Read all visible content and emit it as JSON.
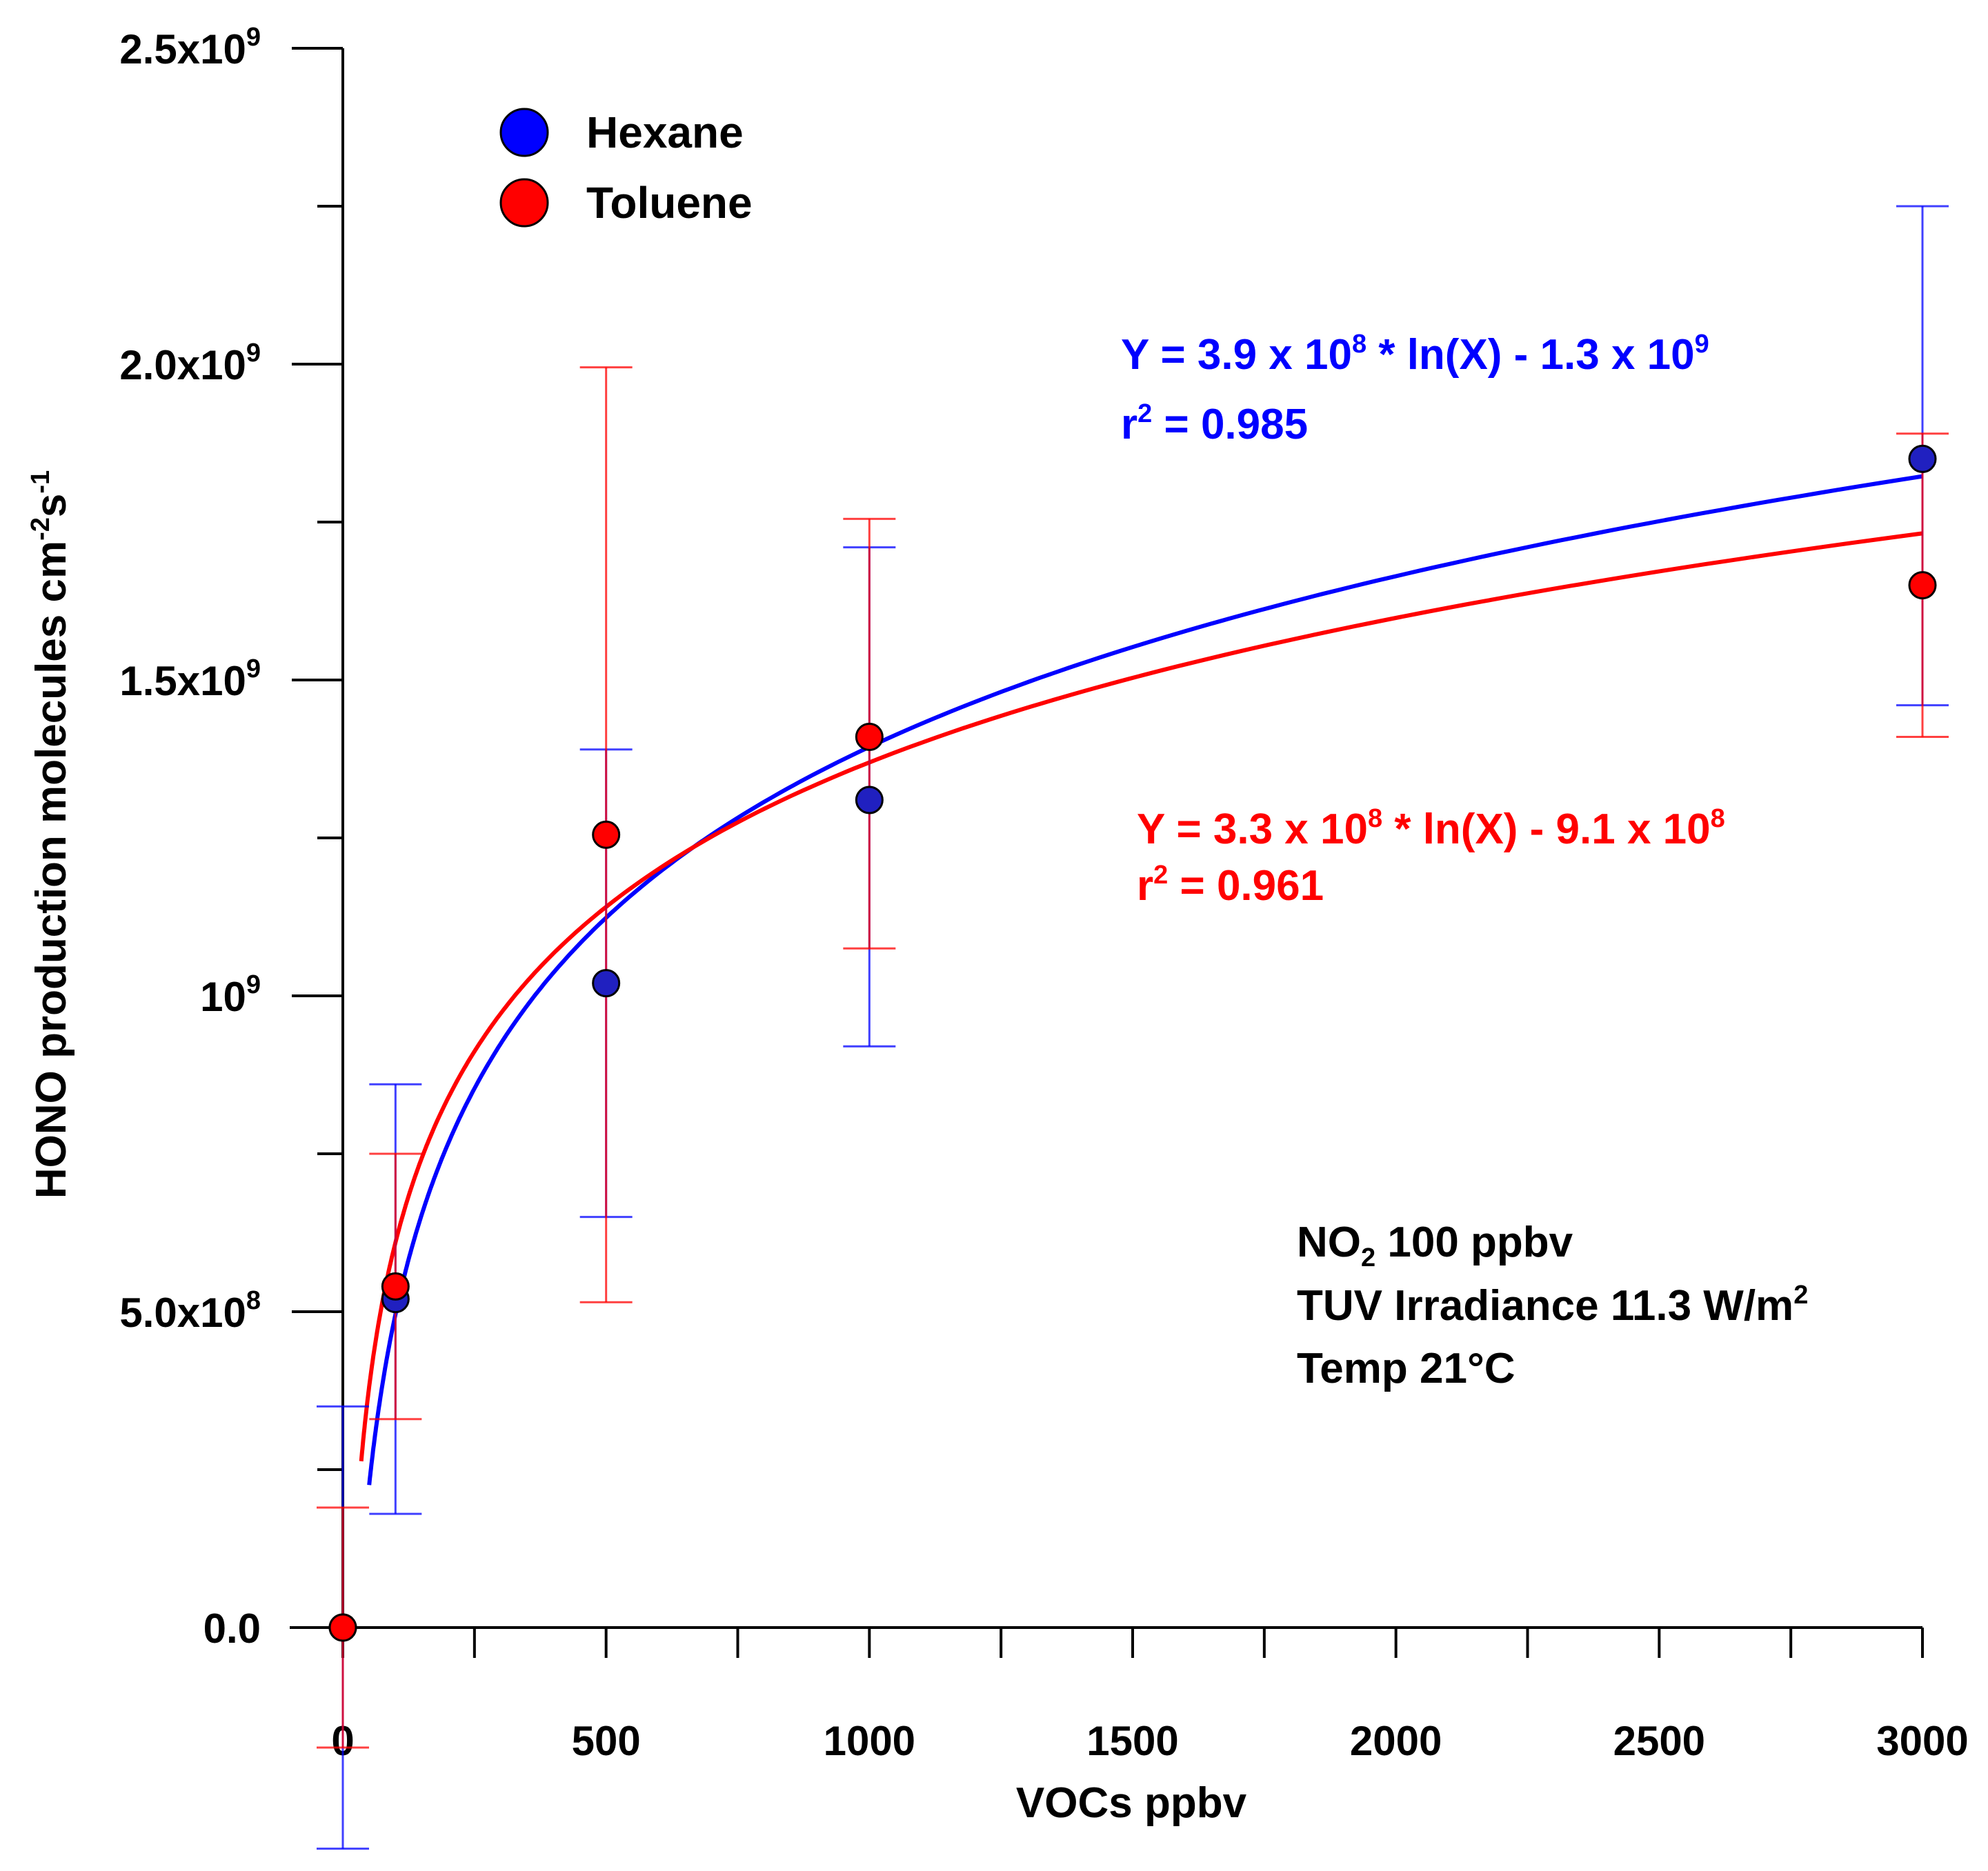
{
  "chart_data": {
    "type": "scatter",
    "xlabel": "VOCs ppbv",
    "ylabel": {
      "main": "HONO production  molecules cm",
      "sup1": "-2",
      "mid": "s",
      "sup2": "-1"
    },
    "xlim": [
      0,
      3000
    ],
    "ylim": [
      0,
      2500000000
    ],
    "x_ticks": [
      {
        "value": 0,
        "label": "0"
      },
      {
        "value": 500,
        "label": "500"
      },
      {
        "value": 1000,
        "label": "1000"
      },
      {
        "value": 1500,
        "label": "1500"
      },
      {
        "value": 2000,
        "label": "2000"
      },
      {
        "value": 2500,
        "label": "2500"
      },
      {
        "value": 3000,
        "label": "3000"
      }
    ],
    "x_minor_ticks": [
      250,
      750,
      1250,
      1750,
      2250,
      2750
    ],
    "y_ticks": [
      {
        "value": 0,
        "base": "0.0",
        "exp": ""
      },
      {
        "value": 500000000,
        "base": "5.0x10",
        "exp": "8"
      },
      {
        "value": 1000000000,
        "base": "10",
        "exp": "9"
      },
      {
        "value": 1500000000,
        "base": "1.5x10",
        "exp": "9"
      },
      {
        "value": 2000000000,
        "base": "2.0x10",
        "exp": "9"
      },
      {
        "value": 2500000000,
        "base": "2.5x10",
        "exp": "9"
      }
    ],
    "y_minor_ticks": [
      250000000,
      750000000,
      1250000000,
      1750000000,
      2250000000
    ],
    "series": [
      {
        "name": "Hexane",
        "color": "#0000ff",
        "marker_color": "#2020c0",
        "points": [
          {
            "x": 0,
            "y": 0,
            "err_low": 350000000,
            "err_high": 350000000
          },
          {
            "x": 100,
            "y": 520000000,
            "err_low": 340000000,
            "err_high": 340000000
          },
          {
            "x": 500,
            "y": 1020000000,
            "err_low": 370000000,
            "err_high": 370000000
          },
          {
            "x": 1000,
            "y": 1310000000,
            "err_low": 390000000,
            "err_high": 400000000
          },
          {
            "x": 3000,
            "y": 1850000000,
            "err_low": 390000000,
            "err_high": 400000000
          }
        ],
        "fit": {
          "a": 390000000,
          "b": -1300000000,
          "x_start": 50,
          "x_end": 3000
        }
      },
      {
        "name": "Toluene",
        "color": "#ff0000",
        "marker_color": "#ff0000",
        "points": [
          {
            "x": 0,
            "y": 0,
            "err_low": 190000000,
            "err_high": 190000000
          },
          {
            "x": 100,
            "y": 540000000,
            "err_low": 210000000,
            "err_high": 210000000
          },
          {
            "x": 500,
            "y": 1255000000,
            "err_low": 740000000,
            "err_high": 740000000
          },
          {
            "x": 1000,
            "y": 1410000000,
            "err_low": 335000000,
            "err_high": 345000000
          },
          {
            "x": 3000,
            "y": 1650000000,
            "err_low": 240000000,
            "err_high": 240000000
          }
        ],
        "fit": {
          "a": 330000000,
          "b": -910000000,
          "x_start": 35,
          "x_end": 3000
        }
      }
    ],
    "legend": {
      "position": "top-left",
      "entries": [
        "Hexane",
        "Toluene"
      ]
    },
    "equations": [
      {
        "series": "Hexane",
        "color": "#0000ff",
        "line1": {
          "a": "Y = 3.9 x 10",
          "a_exp": "8",
          "b": " * ln(X) - 1.3 x 10",
          "b_exp": "9"
        },
        "line2": {
          "a": "r",
          "a_exp": "2",
          "b": " = 0.985"
        }
      },
      {
        "series": "Toluene",
        "color": "#ff0000",
        "line1": {
          "a": "Y = 3.3 x 10",
          "a_exp": "8",
          "b": " * ln(X) - 9.1 x 10",
          "b_exp": "8"
        },
        "line2": {
          "a": "r",
          "a_exp": "2",
          "b": " = 0.961"
        }
      }
    ],
    "conditions": {
      "line1": {
        "a": "NO",
        "sub": "2",
        "b": " 100 ppbv"
      },
      "line2": {
        "a": "TUV Irradiance 11.3 W/m",
        "sup": "2"
      },
      "line3": "Temp 21°C"
    }
  }
}
